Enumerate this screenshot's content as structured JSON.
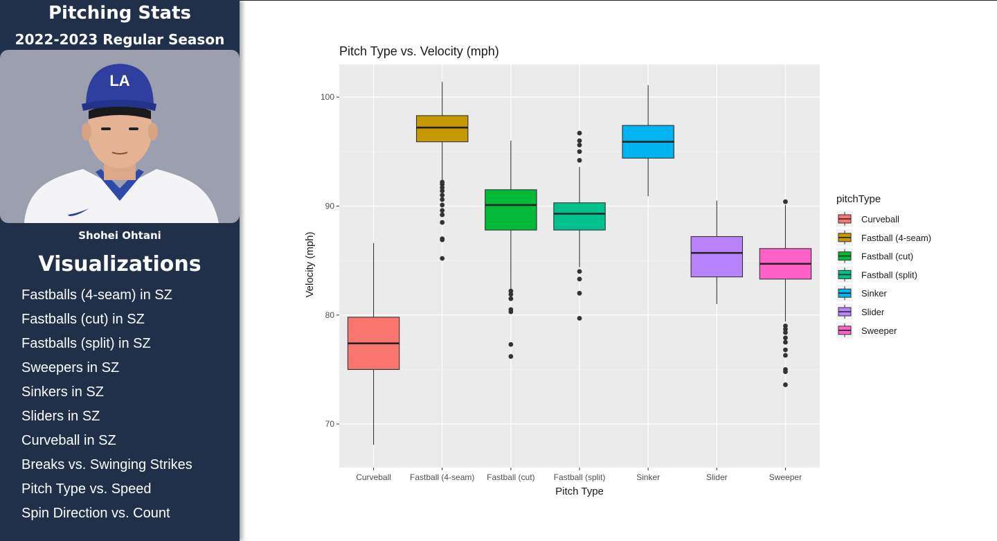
{
  "sidebar": {
    "title": "Pitching Stats",
    "subtitle": "2022-2023 Regular Season",
    "player_name": "Shohei Ohtani",
    "section_title": "Visualizations",
    "nav_items": [
      "Fastballs (4-seam) in SZ",
      "Fastballs (cut) in SZ",
      "Fastballs (split) in SZ",
      "Sweepers in SZ",
      "Sinkers in SZ",
      "Sliders in SZ",
      "Curveball in SZ",
      "Breaks vs. Swinging Strikes",
      "Pitch Type vs. Speed",
      "Spin Direction vs. Count"
    ]
  },
  "colors": {
    "sidebar_bg": "#21304a",
    "photo_bg": "#9c9fae",
    "panel_bg": "#ebebeb"
  },
  "chart_data": {
    "type": "box",
    "title": "Pitch Type vs. Velocity (mph)",
    "xlabel": "Pitch Type",
    "ylabel": "Velocity (mph)",
    "ylim": [
      66,
      103
    ],
    "yticks": [
      70,
      80,
      90,
      100
    ],
    "legend_title": "pitchType",
    "legend_position": "right",
    "grid": true,
    "series": [
      {
        "name": "Curveball",
        "color": "#F8766D",
        "q1": 75.0,
        "median": 77.4,
        "q3": 79.8,
        "whisker_low": 68.1,
        "whisker_high": 86.6,
        "outliers": []
      },
      {
        "name": "Fastball (4-seam)",
        "color": "#C49A00",
        "q1": 95.9,
        "median": 97.2,
        "q3": 98.3,
        "whisker_low": 92.4,
        "whisker_high": 101.4,
        "outliers": [
          92.2,
          92.0,
          91.7,
          91.4,
          91.0,
          90.6,
          90.1,
          89.6,
          89.2,
          88.5,
          87.0,
          86.9,
          85.2
        ]
      },
      {
        "name": "Fastball (cut)",
        "color": "#00BA38",
        "q1": 87.8,
        "median": 90.1,
        "q3": 91.5,
        "whisker_low": 82.4,
        "whisker_high": 96.0,
        "outliers": [
          82.2,
          81.9,
          81.5,
          80.5,
          80.3,
          77.3,
          76.2
        ]
      },
      {
        "name": "Fastball (split)",
        "color": "#00C08B",
        "q1": 87.8,
        "median": 89.3,
        "q3": 90.3,
        "whisker_low": 84.4,
        "whisker_high": 93.6,
        "outliers": [
          96.7,
          96.0,
          95.6,
          95.0,
          94.2,
          84.0,
          83.3,
          82.0,
          79.7
        ]
      },
      {
        "name": "Sinker",
        "color": "#00B4F0",
        "q1": 94.4,
        "median": 95.9,
        "q3": 97.4,
        "whisker_low": 90.9,
        "whisker_high": 101.1,
        "outliers": []
      },
      {
        "name": "Slider",
        "color": "#B983FF",
        "q1": 83.5,
        "median": 85.7,
        "q3": 87.2,
        "whisker_low": 81.0,
        "whisker_high": 90.5,
        "outliers": []
      },
      {
        "name": "Sweeper",
        "color": "#FF61C9",
        "q1": 83.3,
        "median": 84.7,
        "q3": 86.1,
        "whisker_low": 79.4,
        "whisker_high": 90.1,
        "outliers": [
          90.4,
          79.0,
          78.7,
          78.4,
          77.9,
          77.5,
          76.8,
          76.3,
          75.0,
          74.8,
          73.6
        ]
      }
    ]
  }
}
